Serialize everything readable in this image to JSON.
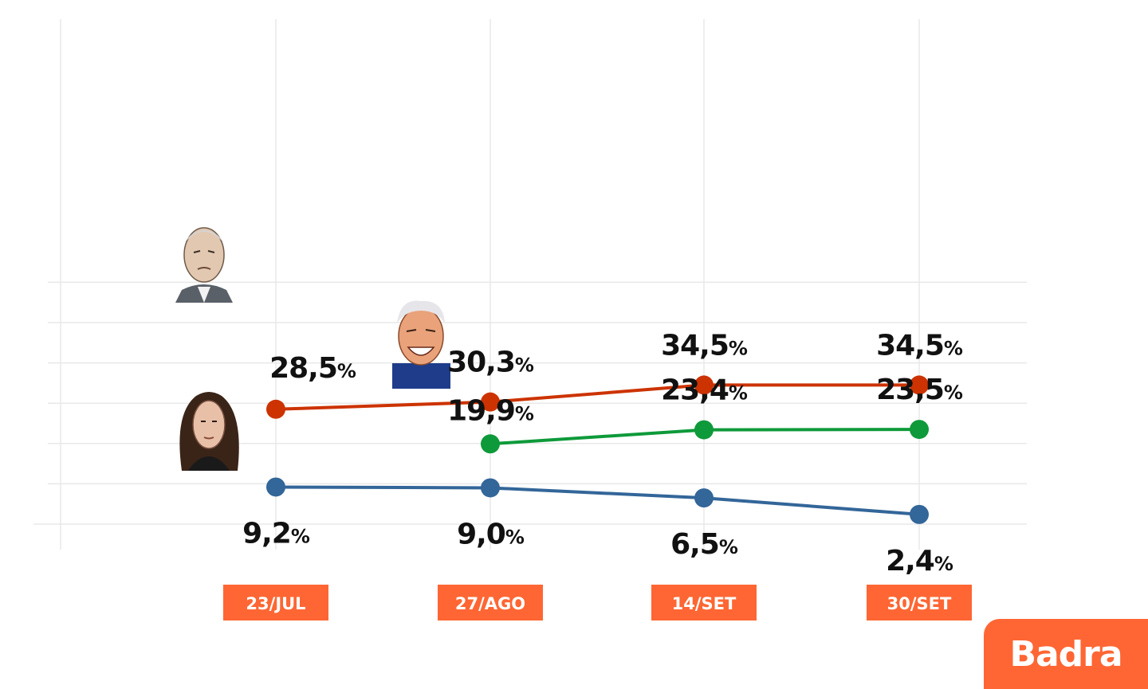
{
  "chart_data": {
    "type": "line",
    "categories": [
      "23/JUL",
      "27/AGO",
      "14/SET",
      "30/SET"
    ],
    "ylim": [
      0,
      60
    ],
    "grid": true,
    "series": [
      {
        "key": "red",
        "color": "#cc3300",
        "values": [
          28.5,
          30.3,
          34.5,
          34.5
        ],
        "labels": [
          "28,5",
          "30,3",
          "34,5",
          "34,5"
        ]
      },
      {
        "key": "green",
        "color": "#0e9a3a",
        "values": [
          null,
          19.9,
          23.4,
          23.5
        ],
        "labels": [
          "",
          "19,9",
          "23,4",
          "23,5"
        ]
      },
      {
        "key": "blue",
        "color": "#336699",
        "values": [
          9.2,
          9.0,
          6.5,
          2.4
        ],
        "labels": [
          "9,2",
          "9,0",
          "6,5",
          "2,4"
        ]
      }
    ],
    "percent_sign": "%"
  },
  "colors": {
    "accent": "#ff6633",
    "grid": "#e8e8e8"
  },
  "brand": {
    "name": "Badra"
  }
}
